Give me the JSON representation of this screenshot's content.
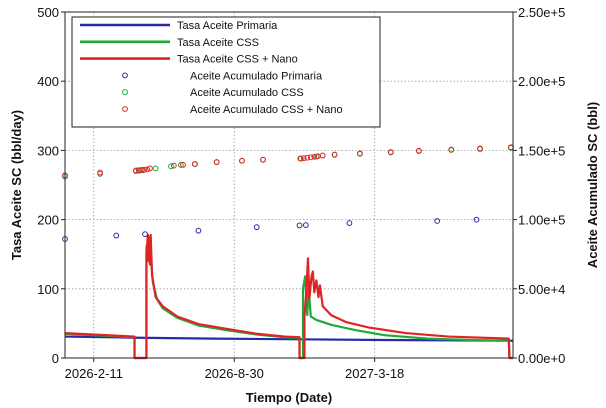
{
  "chart_data": {
    "type": "line",
    "xlabel": "Tiempo (Date)",
    "ylabel_left": "Tasa Aceite SC (bbl/day)",
    "ylabel_right": "Aceite Acumulado SC (bbl)",
    "x_tick_labels": [
      "2026-2-11",
      "2026-8-30",
      "2027-3-18"
    ],
    "xlim": [
      "2026-01-01",
      "2027-10-01"
    ],
    "x_ticks": [
      "2026-02-11",
      "2026-08-30",
      "2027-03-18"
    ],
    "ylim_left": [
      0,
      500
    ],
    "y_ticks_left": [
      0,
      100,
      200,
      300,
      400,
      500
    ],
    "y_tick_labels_left": [
      "0",
      "100",
      "200",
      "300",
      "400",
      "500"
    ],
    "ylim_right": [
      0,
      250000
    ],
    "y_ticks_right": [
      0,
      50000,
      100000,
      150000,
      200000,
      250000
    ],
    "y_tick_labels_right": [
      "0.00e+0",
      "5.00e+4",
      "1.00e+5",
      "1.50e+5",
      "2.00e+5",
      "2.50e+5"
    ],
    "grid": true,
    "legend_placement": "top-left",
    "colors": {
      "primaria": "#2a2aa8",
      "css": "#22a83a",
      "css_nano": "#e02424"
    },
    "series": [
      {
        "name": "Tasa Aceite Primaria",
        "kind": "line",
        "axis": "left",
        "color": "#2a2aa8",
        "points": [
          [
            "2026-01-01",
            31
          ],
          [
            "2026-04-01",
            29.5
          ],
          [
            "2026-08-01",
            28
          ],
          [
            "2026-12-01",
            27
          ],
          [
            "2027-04-01",
            26
          ],
          [
            "2027-10-01",
            25
          ]
        ]
      },
      {
        "name": "Tasa Aceite CSS",
        "kind": "line",
        "axis": "left",
        "color": "#22a83a",
        "points": [
          [
            "2026-01-01",
            35
          ],
          [
            "2026-04-10",
            30
          ],
          [
            "2026-04-10",
            0
          ],
          [
            "2026-04-27",
            0
          ],
          [
            "2026-04-27",
            160
          ],
          [
            "2026-05-01",
            175
          ],
          [
            "2026-05-03",
            150
          ],
          [
            "2026-05-06",
            110
          ],
          [
            "2026-05-12",
            85
          ],
          [
            "2026-05-20",
            72
          ],
          [
            "2026-06-10",
            58
          ],
          [
            "2026-07-10",
            47
          ],
          [
            "2026-08-20",
            40
          ],
          [
            "2026-10-01",
            34
          ],
          [
            "2026-11-10",
            30
          ],
          [
            "2026-12-01",
            29
          ],
          [
            "2026-12-01",
            0
          ],
          [
            "2026-12-06",
            0
          ],
          [
            "2026-12-06",
            100
          ],
          [
            "2026-12-09",
            118
          ],
          [
            "2026-12-12",
            62
          ],
          [
            "2026-12-14",
            100
          ],
          [
            "2026-12-17",
            60
          ],
          [
            "2026-12-25",
            55
          ],
          [
            "2027-01-15",
            48
          ],
          [
            "2027-02-20",
            40
          ],
          [
            "2027-04-01",
            33
          ],
          [
            "2027-06-01",
            28
          ],
          [
            "2027-08-01",
            26
          ],
          [
            "2027-09-25",
            25
          ],
          [
            "2027-09-26",
            0
          ],
          [
            "2027-10-01",
            0
          ]
        ]
      },
      {
        "name": "Tasa Aceite CSS + Nano",
        "kind": "line",
        "axis": "left",
        "color": "#e02424",
        "points": [
          [
            "2026-01-01",
            36
          ],
          [
            "2026-04-10",
            31
          ],
          [
            "2026-04-10",
            0
          ],
          [
            "2026-04-27",
            0
          ],
          [
            "2026-04-27",
            150
          ],
          [
            "2026-04-29",
            178
          ],
          [
            "2026-04-30",
            140
          ],
          [
            "2026-05-01",
            172
          ],
          [
            "2026-05-02",
            135
          ],
          [
            "2026-05-03",
            178
          ],
          [
            "2026-05-05",
            120
          ],
          [
            "2026-05-10",
            88
          ],
          [
            "2026-05-20",
            75
          ],
          [
            "2026-06-10",
            60
          ],
          [
            "2026-07-10",
            49
          ],
          [
            "2026-08-20",
            42
          ],
          [
            "2026-10-01",
            35
          ],
          [
            "2026-11-10",
            31
          ],
          [
            "2026-12-01",
            30
          ],
          [
            "2026-12-01",
            0
          ],
          [
            "2026-12-08",
            0
          ],
          [
            "2026-12-08",
            60
          ],
          [
            "2026-12-11",
            100
          ],
          [
            "2026-12-13",
            144
          ],
          [
            "2026-12-15",
            85
          ],
          [
            "2026-12-18",
            118
          ],
          [
            "2026-12-20",
            125
          ],
          [
            "2026-12-22",
            95
          ],
          [
            "2026-12-25",
            112
          ],
          [
            "2026-12-28",
            88
          ],
          [
            "2026-12-30",
            105
          ],
          [
            "2027-01-03",
            75
          ],
          [
            "2027-01-15",
            62
          ],
          [
            "2027-02-05",
            52
          ],
          [
            "2027-03-10",
            44
          ],
          [
            "2027-05-01",
            36
          ],
          [
            "2027-07-01",
            31
          ],
          [
            "2027-09-25",
            28
          ],
          [
            "2027-09-26",
            0
          ],
          [
            "2027-10-01",
            0
          ]
        ]
      },
      {
        "name": "Aceite Acumulado Primaria",
        "kind": "markers",
        "axis": "right",
        "color": "#2a2aa8",
        "points": [
          [
            "2026-01-01",
            86000
          ],
          [
            "2026-03-15",
            88500
          ],
          [
            "2026-04-25",
            89500
          ],
          [
            "2026-07-10",
            92000
          ],
          [
            "2026-10-01",
            94500
          ],
          [
            "2026-12-01",
            95800
          ],
          [
            "2026-12-10",
            96000
          ],
          [
            "2027-02-10",
            97500
          ],
          [
            "2027-06-15",
            99000
          ],
          [
            "2027-08-10",
            100000
          ]
        ]
      },
      {
        "name": "Aceite Acumulado CSS",
        "kind": "markers",
        "axis": "right",
        "color": "#22a83a",
        "points": [
          [
            "2026-01-01",
            131000
          ],
          [
            "2026-02-20",
            133000
          ],
          [
            "2026-04-12",
            135000
          ],
          [
            "2026-04-17",
            135300
          ],
          [
            "2026-04-22",
            135600
          ],
          [
            "2026-05-10",
            137000
          ],
          [
            "2026-06-01",
            138500
          ],
          [
            "2026-06-15",
            139500
          ],
          [
            "2026-07-05",
            140000
          ],
          [
            "2026-08-05",
            141500
          ],
          [
            "2026-09-10",
            142500
          ],
          [
            "2026-10-10",
            143200
          ],
          [
            "2026-12-03",
            144000
          ],
          [
            "2026-12-25",
            145500
          ],
          [
            "2027-01-20",
            146800
          ],
          [
            "2027-02-25",
            147500
          ],
          [
            "2027-04-10",
            148500
          ],
          [
            "2027-05-20",
            149500
          ],
          [
            "2027-07-05",
            150300
          ],
          [
            "2027-08-15",
            151000
          ],
          [
            "2027-09-28",
            151800
          ]
        ]
      },
      {
        "name": "Aceite Acumulado CSS + Nano",
        "kind": "markers",
        "axis": "right",
        "color": "#e02424",
        "points": [
          [
            "2026-01-01",
            132000
          ],
          [
            "2026-02-20",
            134000
          ],
          [
            "2026-04-12",
            135500
          ],
          [
            "2026-04-16",
            135700
          ],
          [
            "2026-04-20",
            135900
          ],
          [
            "2026-04-24",
            136100
          ],
          [
            "2026-04-28",
            136300
          ],
          [
            "2026-05-02",
            137000
          ],
          [
            "2026-06-05",
            139000
          ],
          [
            "2026-06-18",
            139600
          ],
          [
            "2026-07-05",
            140200
          ],
          [
            "2026-08-05",
            141600
          ],
          [
            "2026-09-10",
            142500
          ],
          [
            "2026-10-10",
            143300
          ],
          [
            "2026-12-02",
            144200
          ],
          [
            "2026-12-07",
            144400
          ],
          [
            "2026-12-12",
            144700
          ],
          [
            "2026-12-17",
            145000
          ],
          [
            "2026-12-22",
            145400
          ],
          [
            "2026-12-27",
            145800
          ],
          [
            "2027-01-03",
            146300
          ],
          [
            "2027-01-20",
            147000
          ],
          [
            "2027-02-25",
            147800
          ],
          [
            "2027-04-10",
            148800
          ],
          [
            "2027-05-20",
            149800
          ],
          [
            "2027-07-05",
            150600
          ],
          [
            "2027-08-15",
            151400
          ],
          [
            "2027-09-28",
            152300
          ]
        ]
      }
    ]
  }
}
